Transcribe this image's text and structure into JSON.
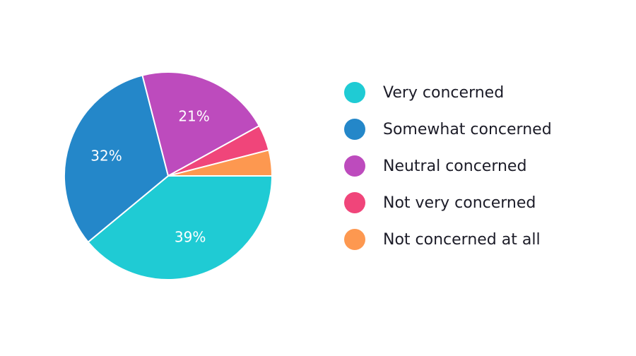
{
  "chart_data": {
    "type": "pie",
    "title": "",
    "legend_position": "right",
    "categories": [
      "Very concerned",
      "Somewhat concerned",
      "Neutral concerned",
      "Not very concerned",
      "Not concerned at all"
    ],
    "values": [
      39,
      32,
      21,
      4,
      4
    ],
    "data_labels": [
      "39%",
      "32%",
      "21%",
      "",
      ""
    ],
    "colors": [
      "#1fcbd4",
      "#2487c9",
      "#bd4bbd",
      "#f0457a",
      "#fd9850"
    ]
  }
}
